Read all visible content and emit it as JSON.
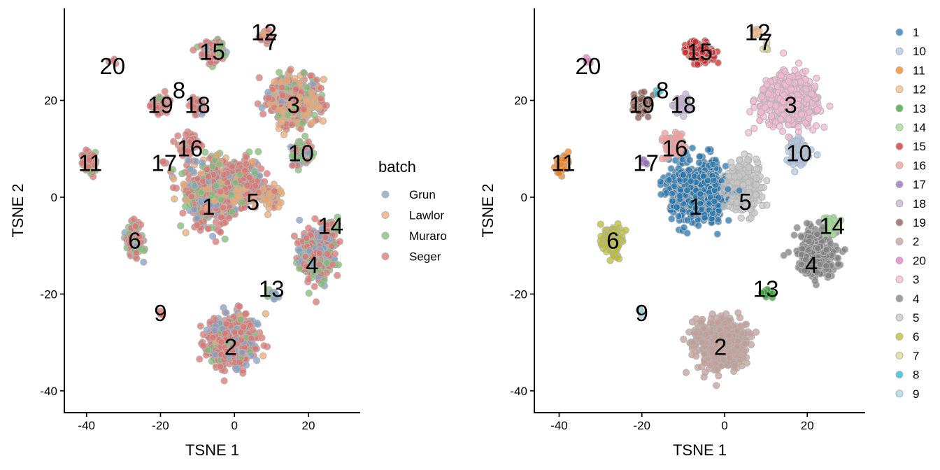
{
  "chart_data": [
    {
      "type": "scatter",
      "panel": "left",
      "xlabel": "TSNE 1",
      "ylabel": "TSNE 2",
      "xlim": [
        -46,
        34
      ],
      "ylim": [
        -44.5,
        39
      ],
      "x_ticks": [
        -40,
        -20,
        0,
        20
      ],
      "y_ticks": [
        -40,
        -20,
        0,
        20
      ],
      "x_tick_labels": [
        "-40",
        "-20",
        "0",
        "20"
      ],
      "y_tick_labels": [
        "-40",
        "-20",
        "0",
        "20"
      ],
      "grid": false,
      "color_by": "batch",
      "legend": {
        "title": "batch",
        "placement": "right",
        "entries": [
          {
            "label": "Grun",
            "color": "#7fa0c8"
          },
          {
            "label": "Lawlor",
            "color": "#f0a868"
          },
          {
            "label": "Muraro",
            "color": "#7cbd6e"
          },
          {
            "label": "Seger",
            "color": "#e0716e"
          }
        ]
      },
      "cluster_labels": [
        {
          "text": "20",
          "x": -33,
          "y": 27
        },
        {
          "text": "15",
          "x": -6,
          "y": 30
        },
        {
          "text": "12",
          "x": 8,
          "y": 34
        },
        {
          "text": "7",
          "x": 10,
          "y": 32
        },
        {
          "text": "8",
          "x": -15,
          "y": 22
        },
        {
          "text": "19",
          "x": -20,
          "y": 19
        },
        {
          "text": "18",
          "x": -10,
          "y": 19
        },
        {
          "text": "3",
          "x": 16,
          "y": 19
        },
        {
          "text": "16",
          "x": -12,
          "y": 10
        },
        {
          "text": "11",
          "x": -39,
          "y": 7
        },
        {
          "text": "17",
          "x": -19,
          "y": 7
        },
        {
          "text": "10",
          "x": 18,
          "y": 9
        },
        {
          "text": "5",
          "x": 5,
          "y": -1
        },
        {
          "text": "1",
          "x": -7,
          "y": -2
        },
        {
          "text": "14",
          "x": 26,
          "y": -6
        },
        {
          "text": "6",
          "x": -27,
          "y": -9
        },
        {
          "text": "4",
          "x": 21,
          "y": -14
        },
        {
          "text": "13",
          "x": 10,
          "y": -19
        },
        {
          "text": "9",
          "x": -20,
          "y": -24
        },
        {
          "text": "2",
          "x": -1,
          "y": -31
        }
      ],
      "clusters": [
        {
          "x": -6,
          "y": 1,
          "sx": 6.5,
          "sy": 5.5,
          "n": 700,
          "mix": {
            "Seger": 0.55,
            "Muraro": 0.18,
            "Lawlor": 0.15,
            "Grun": 0.12
          }
        },
        {
          "x": 3,
          "y": 3,
          "sx": 4.5,
          "sy": 4.5,
          "n": 260,
          "mix": {
            "Seger": 0.5,
            "Lawlor": 0.3,
            "Muraro": 0.1,
            "Grun": 0.1
          }
        },
        {
          "x": 10,
          "y": 0,
          "sx": 2.5,
          "sy": 2.5,
          "n": 70,
          "mix": {
            "Lawlor": 0.85,
            "Seger": 0.15
          }
        },
        {
          "x": -1,
          "y": -30,
          "sx": 5.5,
          "sy": 4.5,
          "n": 550,
          "mix": {
            "Seger": 0.65,
            "Grun": 0.2,
            "Muraro": 0.1,
            "Lawlor": 0.05
          }
        },
        {
          "x": 16,
          "y": 20,
          "sx": 6,
          "sy": 4.5,
          "n": 520,
          "mix": {
            "Seger": 0.4,
            "Lawlor": 0.4,
            "Muraro": 0.12,
            "Grun": 0.08
          }
        },
        {
          "x": 22,
          "y": -12,
          "sx": 4,
          "sy": 4.5,
          "n": 380,
          "mix": {
            "Seger": 0.5,
            "Grun": 0.3,
            "Muraro": 0.2
          }
        },
        {
          "x": 26,
          "y": -6,
          "sx": 2,
          "sy": 1.5,
          "n": 40,
          "mix": {
            "Muraro": 0.6,
            "Seger": 0.4
          }
        },
        {
          "x": -27,
          "y": -9,
          "sx": 2,
          "sy": 3,
          "n": 140,
          "mix": {
            "Seger": 0.55,
            "Muraro": 0.3,
            "Grun": 0.15
          }
        },
        {
          "x": 18,
          "y": 9,
          "sx": 2.5,
          "sy": 2.5,
          "n": 90,
          "mix": {
            "Muraro": 0.4,
            "Grun": 0.3,
            "Seger": 0.3
          }
        },
        {
          "x": -39,
          "y": 7,
          "sx": 1.6,
          "sy": 2,
          "n": 70,
          "mix": {
            "Seger": 0.75,
            "Muraro": 0.2,
            "Grun": 0.05
          }
        },
        {
          "x": -6,
          "y": 30,
          "sx": 3,
          "sy": 2,
          "n": 150,
          "mix": {
            "Seger": 0.55,
            "Muraro": 0.35,
            "Grun": 0.1
          }
        },
        {
          "x": -20,
          "y": 19,
          "sx": 2,
          "sy": 1.8,
          "n": 70,
          "mix": {
            "Seger": 0.9,
            "Muraro": 0.1
          }
        },
        {
          "x": -10,
          "y": 19,
          "sx": 1.8,
          "sy": 1.6,
          "n": 50,
          "mix": {
            "Seger": 0.9,
            "Grun": 0.1
          }
        },
        {
          "x": -12,
          "y": 11,
          "sx": 2.5,
          "sy": 2,
          "n": 90,
          "mix": {
            "Seger": 0.9,
            "Lawlor": 0.1
          }
        },
        {
          "x": 8,
          "y": 33,
          "sx": 1.5,
          "sy": 1.2,
          "n": 20,
          "mix": {
            "Seger": 0.8,
            "Lawlor": 0.2
          }
        },
        {
          "x": 10,
          "y": -20,
          "sx": 1.2,
          "sy": 1,
          "n": 12,
          "mix": {
            "Grun": 0.6,
            "Muraro": 0.4
          }
        },
        {
          "x": -19,
          "y": 7,
          "sx": 0.8,
          "sy": 0.8,
          "n": 4,
          "mix": {
            "Seger": 1.0
          }
        },
        {
          "x": -33,
          "y": 28,
          "sx": 0.8,
          "sy": 0.8,
          "n": 4,
          "mix": {
            "Seger": 1.0
          }
        },
        {
          "x": -20,
          "y": -24,
          "sx": 0.8,
          "sy": 0.8,
          "n": 4,
          "mix": {
            "Seger": 1.0
          }
        }
      ]
    },
    {
      "type": "scatter",
      "panel": "right",
      "xlabel": "TSNE 1",
      "ylabel": "TSNE 2",
      "xlim": [
        -46,
        34
      ],
      "ylim": [
        -44.5,
        39
      ],
      "x_ticks": [
        -40,
        -20,
        0,
        20
      ],
      "y_ticks": [
        -40,
        -20,
        0,
        20
      ],
      "x_tick_labels": [
        "-40",
        "-20",
        "0",
        "20"
      ],
      "y_tick_labels": [
        "-40",
        "-20",
        "0",
        "20"
      ],
      "grid": false,
      "color_by": "cluster",
      "legend": {
        "title": "",
        "placement": "right",
        "entries": [
          {
            "label": "1",
            "color": "#1f77b4"
          },
          {
            "label": "10",
            "color": "#aec7e8"
          },
          {
            "label": "11",
            "color": "#ff7f0e"
          },
          {
            "label": "12",
            "color": "#ffbb78"
          },
          {
            "label": "13",
            "color": "#2ca02c"
          },
          {
            "label": "14",
            "color": "#98df8a"
          },
          {
            "label": "15",
            "color": "#d62728"
          },
          {
            "label": "16",
            "color": "#ff9896"
          },
          {
            "label": "17",
            "color": "#9467bd"
          },
          {
            "label": "18",
            "color": "#c5b0d5"
          },
          {
            "label": "19",
            "color": "#8c564b"
          },
          {
            "label": "2",
            "color": "#c49c94"
          },
          {
            "label": "20",
            "color": "#e377c2"
          },
          {
            "label": "3",
            "color": "#f7b6d2"
          },
          {
            "label": "4",
            "color": "#7f7f7f"
          },
          {
            "label": "5",
            "color": "#c7c7c7"
          },
          {
            "label": "6",
            "color": "#bcbd22"
          },
          {
            "label": "7",
            "color": "#dbdb8d"
          },
          {
            "label": "8",
            "color": "#17becf"
          },
          {
            "label": "9",
            "color": "#9edae5"
          }
        ]
      },
      "cluster_labels": [
        {
          "text": "20",
          "x": -33,
          "y": 27
        },
        {
          "text": "15",
          "x": -6,
          "y": 30
        },
        {
          "text": "12",
          "x": 8,
          "y": 34
        },
        {
          "text": "7",
          "x": 10,
          "y": 32
        },
        {
          "text": "8",
          "x": -15,
          "y": 22
        },
        {
          "text": "19",
          "x": -20,
          "y": 19
        },
        {
          "text": "18",
          "x": -10,
          "y": 19
        },
        {
          "text": "3",
          "x": 16,
          "y": 19
        },
        {
          "text": "16",
          "x": -12,
          "y": 10
        },
        {
          "text": "11",
          "x": -39,
          "y": 7
        },
        {
          "text": "17",
          "x": -19,
          "y": 7
        },
        {
          "text": "10",
          "x": 18,
          "y": 9
        },
        {
          "text": "5",
          "x": 5,
          "y": -1
        },
        {
          "text": "1",
          "x": -7,
          "y": -2
        },
        {
          "text": "14",
          "x": 26,
          "y": -6
        },
        {
          "text": "6",
          "x": -27,
          "y": -9
        },
        {
          "text": "4",
          "x": 21,
          "y": -14
        },
        {
          "text": "13",
          "x": 10,
          "y": -19
        },
        {
          "text": "9",
          "x": -20,
          "y": -24
        },
        {
          "text": "2",
          "x": -1,
          "y": -31
        }
      ],
      "clusters": [
        {
          "id": "1",
          "x": -6,
          "y": 1,
          "sx": 6.5,
          "sy": 5.5,
          "n": 700
        },
        {
          "id": "5",
          "x": 4,
          "y": 2,
          "sx": 4.5,
          "sy": 4.5,
          "n": 300
        },
        {
          "id": "2",
          "x": -1,
          "y": -30,
          "sx": 5.5,
          "sy": 4.5,
          "n": 550
        },
        {
          "id": "3",
          "x": 16,
          "y": 20,
          "sx": 6,
          "sy": 4.5,
          "n": 520
        },
        {
          "id": "4",
          "x": 22,
          "y": -12,
          "sx": 4,
          "sy": 4.5,
          "n": 380
        },
        {
          "id": "14",
          "x": 26,
          "y": -6,
          "sx": 2,
          "sy": 1.5,
          "n": 40
        },
        {
          "id": "6",
          "x": -27,
          "y": -9,
          "sx": 2,
          "sy": 3,
          "n": 140
        },
        {
          "id": "10",
          "x": 18,
          "y": 9,
          "sx": 2.5,
          "sy": 2.5,
          "n": 90
        },
        {
          "id": "11",
          "x": -39,
          "y": 7,
          "sx": 1.6,
          "sy": 2,
          "n": 70
        },
        {
          "id": "15",
          "x": -6,
          "y": 30,
          "sx": 3,
          "sy": 2,
          "n": 150
        },
        {
          "id": "19",
          "x": -20,
          "y": 19,
          "sx": 2,
          "sy": 1.8,
          "n": 70
        },
        {
          "id": "18",
          "x": -10,
          "y": 19,
          "sx": 1.8,
          "sy": 1.6,
          "n": 50
        },
        {
          "id": "16",
          "x": -12,
          "y": 11,
          "sx": 2.5,
          "sy": 2,
          "n": 90
        },
        {
          "id": "12",
          "x": 8,
          "y": 34,
          "sx": 1,
          "sy": 0.8,
          "n": 10
        },
        {
          "id": "7",
          "x": 10,
          "y": 31,
          "sx": 0.8,
          "sy": 0.8,
          "n": 6
        },
        {
          "id": "8",
          "x": -16,
          "y": 22,
          "sx": 0.7,
          "sy": 0.7,
          "n": 5
        },
        {
          "id": "13",
          "x": 10,
          "y": -20,
          "sx": 1.2,
          "sy": 1,
          "n": 12
        },
        {
          "id": "17",
          "x": -19,
          "y": 7,
          "sx": 0.8,
          "sy": 0.8,
          "n": 4
        },
        {
          "id": "20",
          "x": -33,
          "y": 28,
          "sx": 0.8,
          "sy": 0.8,
          "n": 4
        },
        {
          "id": "9",
          "x": -20,
          "y": -24,
          "sx": 0.8,
          "sy": 0.8,
          "n": 4
        }
      ]
    }
  ]
}
